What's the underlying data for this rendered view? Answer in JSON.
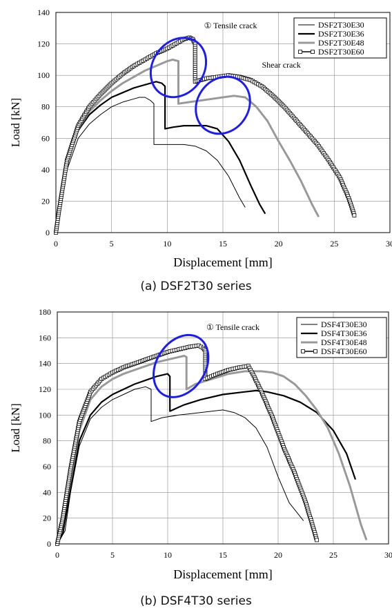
{
  "chart_data": [
    {
      "type": "line",
      "caption": "(a) DSF2T30 series",
      "xlabel": "Displacement [mm]",
      "ylabel": "Load [kN]",
      "xlim": [
        0,
        30
      ],
      "ylim": [
        0,
        140
      ],
      "xticks": [
        0,
        5,
        10,
        15,
        20,
        25,
        30
      ],
      "yticks": [
        0,
        20,
        40,
        60,
        80,
        100,
        120,
        140
      ],
      "grid": true,
      "legend_position": "top-right",
      "annotations": [
        {
          "text": "① Tensile crack",
          "x": 13.3,
          "y": 130
        },
        {
          "text": "Shear crack",
          "x": 18.5,
          "y": 105
        }
      ],
      "ellipses": [
        {
          "cx": 11.0,
          "cy": 105,
          "rx": 2.3,
          "ry": 20,
          "rotation": 35,
          "color": "#1a1aff"
        },
        {
          "cx": 15.0,
          "cy": 81,
          "rx": 2.3,
          "ry": 19,
          "rotation": 35,
          "color": "#1a1aff"
        }
      ],
      "series": [
        {
          "name": "DSF2T30E30",
          "color": "#000000",
          "width": 1,
          "marker": "none",
          "x": [
            0,
            0.3,
            1,
            2,
            3,
            4,
            5,
            6,
            7,
            7.5,
            8,
            8.5,
            8.8,
            8.8,
            9.5,
            10.5,
            11.5,
            12.5,
            13.5,
            14.5,
            15.5,
            16.5,
            17.0
          ],
          "y": [
            0,
            15,
            40,
            60,
            69,
            75,
            80,
            83,
            85,
            86,
            86,
            84,
            82,
            56,
            56,
            56,
            56,
            55,
            52,
            46,
            36,
            22,
            16
          ]
        },
        {
          "name": "DSF2T30E36",
          "color": "#000000",
          "width": 2.2,
          "marker": "none",
          "x": [
            0,
            0.3,
            1,
            2,
            3,
            4,
            5,
            6,
            7,
            8,
            9,
            9.5,
            9.8,
            9.8,
            10.5,
            11.5,
            12.5,
            13.5,
            14.5,
            15.5,
            16.5,
            17.5,
            18.3,
            18.8
          ],
          "y": [
            0,
            15,
            44,
            65,
            75,
            81,
            86,
            89,
            92,
            94,
            96,
            95,
            93,
            66,
            67,
            68,
            68,
            68,
            66,
            58,
            46,
            30,
            18,
            12
          ]
        },
        {
          "name": "DSF2T30E48",
          "color": "#999999",
          "width": 3,
          "marker": "none",
          "x": [
            0,
            0.3,
            1,
            2,
            3,
            4,
            5,
            6,
            7,
            8,
            9,
            10,
            10.5,
            11,
            11.0,
            12,
            13,
            14,
            15,
            16,
            17,
            18,
            19,
            20,
            21,
            22,
            23,
            23.6
          ],
          "y": [
            0,
            15,
            45,
            66,
            77,
            84,
            90,
            95,
            99,
            103,
            106,
            109,
            110,
            109,
            82,
            83,
            84,
            85,
            86,
            87,
            86,
            80,
            71,
            58,
            46,
            33,
            18,
            10
          ]
        },
        {
          "name": "DSF2T30E60",
          "color": "#000000",
          "width": 1.4,
          "marker": "square",
          "x": [
            0,
            0.3,
            1,
            2,
            3,
            4,
            5,
            6,
            7,
            8,
            9,
            10,
            10.5,
            11,
            11.5,
            12,
            12.3,
            12.5,
            12.5,
            13.5,
            14.5,
            15.5,
            16.5,
            17.5,
            18.5,
            19.5,
            20.5,
            21.5,
            22.5,
            23.5,
            24.5,
            25.5,
            26.3,
            26.8
          ],
          "y": [
            0,
            15,
            46,
            68,
            80,
            88,
            95,
            101,
            106,
            110,
            114,
            117,
            119,
            121,
            123,
            124,
            123,
            120,
            96,
            98,
            99,
            100,
            99,
            97,
            93,
            87,
            80,
            72,
            64,
            56,
            46,
            35,
            22,
            11
          ]
        }
      ]
    },
    {
      "type": "line",
      "caption": "(b) DSF4T30 series",
      "xlabel": "Displacement [mm]",
      "ylabel": "Load [kN]",
      "xlim": [
        0,
        30
      ],
      "ylim": [
        0,
        180
      ],
      "xticks": [
        0,
        5,
        10,
        15,
        20,
        25,
        30
      ],
      "yticks": [
        0,
        20,
        40,
        60,
        80,
        100,
        120,
        140,
        160,
        180
      ],
      "grid": true,
      "legend_position": "top-right",
      "annotations": [
        {
          "text": "① Tensile crack",
          "x": 13.5,
          "y": 166
        }
      ],
      "ellipses": [
        {
          "cx": 11.2,
          "cy": 138,
          "rx": 2.2,
          "ry": 26,
          "rotation": 33,
          "color": "#1a1aff"
        }
      ],
      "series": [
        {
          "name": "DSF4T30E30",
          "color": "#000000",
          "width": 1,
          "marker": "none",
          "x": [
            0,
            0.7,
            1.2,
            2,
            3,
            4,
            5,
            6,
            7,
            8,
            8.5,
            8.5,
            9.5,
            11,
            12,
            13,
            14,
            15,
            16,
            17,
            18,
            19,
            20,
            21,
            22.3
          ],
          "y": [
            0,
            10,
            40,
            76,
            97,
            106,
            112,
            116,
            120,
            122,
            120,
            95,
            98,
            100,
            101,
            102,
            103,
            104,
            102,
            98,
            90,
            75,
            52,
            32,
            18
          ]
        },
        {
          "name": "DSF4T30E36",
          "color": "#000000",
          "width": 2.2,
          "marker": "none",
          "x": [
            0,
            0.5,
            1.2,
            2,
            3,
            4,
            5,
            6,
            7,
            8,
            9,
            10,
            10.2,
            10.2,
            11.5,
            13,
            15,
            17,
            18,
            19,
            20.5,
            22,
            23.5,
            25,
            26.2,
            27
          ],
          "y": [
            0,
            8,
            42,
            80,
            100,
            110,
            116,
            120,
            124,
            127,
            130,
            132,
            130,
            103,
            108,
            112,
            116,
            118,
            119,
            118,
            115,
            110,
            102,
            88,
            70,
            50
          ]
        },
        {
          "name": "DSF4T30E48",
          "color": "#999999",
          "width": 3,
          "marker": "none",
          "x": [
            0,
            0.5,
            1.2,
            2,
            3,
            4,
            5,
            6,
            7,
            8,
            9,
            10,
            11,
            11.5,
            11.7,
            11.7,
            12.5,
            14,
            15.5,
            17,
            18.5,
            19.5,
            20.5,
            21.5,
            22.5,
            23.5,
            24.5,
            25.5,
            26.5,
            27.5,
            28
          ],
          "y": [
            0,
            15,
            50,
            88,
            112,
            122,
            128,
            132,
            135,
            138,
            141,
            143,
            145,
            146,
            145,
            120,
            124,
            128,
            132,
            134,
            134,
            133,
            130,
            124,
            115,
            104,
            90,
            70,
            45,
            15,
            3
          ]
        },
        {
          "name": "DSF4T30E60",
          "color": "#000000",
          "width": 1.4,
          "marker": "square",
          "x": [
            0,
            0.5,
            1.2,
            2,
            3,
            4,
            5,
            6,
            7,
            8,
            9,
            10,
            11,
            12,
            12.8,
            13.2,
            13.4,
            13.4,
            14.5,
            15.5,
            16.5,
            17.3,
            17.7,
            18.5,
            19.5,
            20.5,
            21.5,
            22.5,
            23.2,
            23.5
          ],
          "y": [
            0,
            20,
            58,
            95,
            118,
            128,
            133,
            137,
            140,
            143,
            146,
            149,
            151,
            153,
            154,
            152,
            150,
            128,
            132,
            135,
            137,
            138,
            132,
            118,
            98,
            75,
            55,
            32,
            12,
            3
          ]
        }
      ]
    }
  ]
}
